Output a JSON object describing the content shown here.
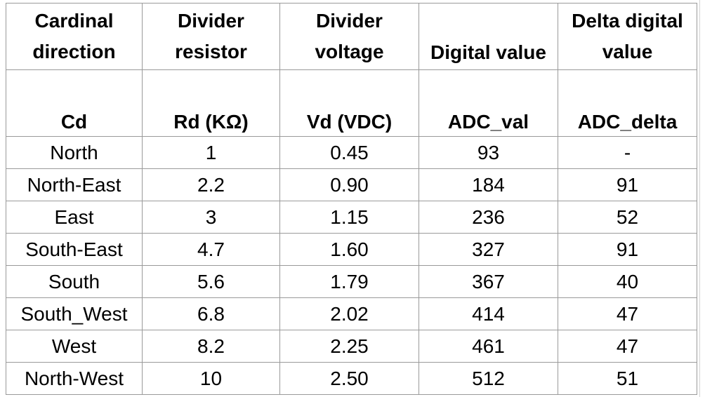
{
  "table": {
    "header_row1": [
      [
        "Cardinal",
        "direction"
      ],
      [
        "Divider",
        "resistor"
      ],
      [
        "Divider",
        "voltage"
      ],
      [
        "Digital value"
      ],
      [
        "Delta digital",
        "value"
      ]
    ],
    "header_row2": [
      "Cd",
      "Rd (KΩ)",
      "Vd (VDC)",
      "ADC_val",
      "ADC_delta"
    ],
    "rows": [
      [
        "North",
        "1",
        "0.45",
        "93",
        "-"
      ],
      [
        "North-East",
        "2.2",
        "0.90",
        "184",
        "91"
      ],
      [
        "East",
        "3",
        "1.15",
        "236",
        "52"
      ],
      [
        "South-East",
        "4.7",
        "1.60",
        "327",
        "91"
      ],
      [
        "South",
        "5.6",
        "1.79",
        "367",
        "40"
      ],
      [
        "South_West",
        "6.8",
        "2.02",
        "414",
        "47"
      ],
      [
        "West",
        "8.2",
        "2.25",
        "461",
        "47"
      ],
      [
        "North-West",
        "10",
        "2.50",
        "512",
        "51"
      ]
    ]
  }
}
